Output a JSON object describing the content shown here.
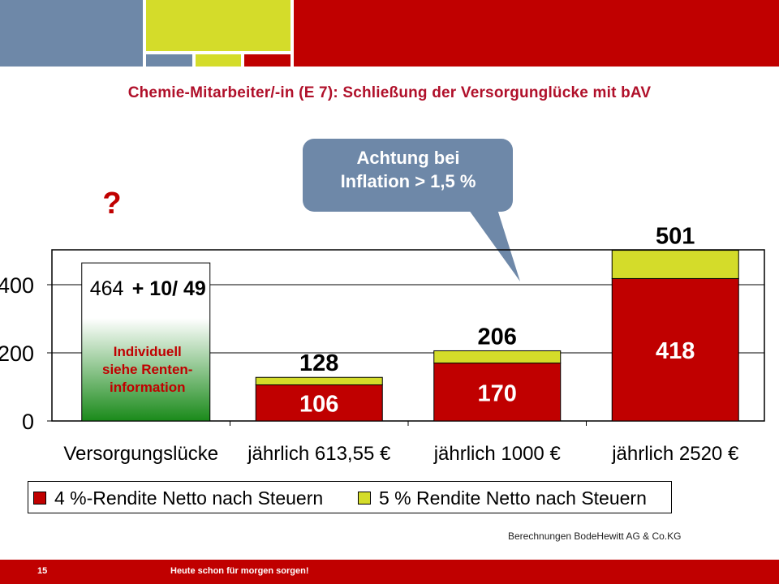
{
  "page": {
    "title": "Chemie-Mitarbeiter/-in (E 7): Schließung der Versorgunglücke mit bAV",
    "callout": [
      "Achtung bei",
      "Inflation > 1,5 %"
    ],
    "question_mark": "?",
    "source_note": "Berechnungen  BodeHewitt AG & Co.KG",
    "footer": {
      "page_number": "15",
      "slogan": "Heute schon für morgen sorgen!"
    }
  },
  "colors": {
    "brand_red": "#c00000",
    "accent_yellow": "#d4dc2a",
    "slate_blue": "#6e88a8",
    "title_red": "#b0102a",
    "gap_green_top": "#ffffff",
    "gap_green_bottom": "#1a8a1a"
  },
  "chart_data": {
    "type": "bar",
    "stacked": true,
    "categories": [
      "Versorgungslücke",
      "jährlich 613,55 €",
      "jährlich 1000 €",
      "jährlich 2520 €"
    ],
    "series": [
      {
        "name": "4 %-Rendite Netto nach Steuern",
        "values": [
          null,
          106,
          170,
          418
        ]
      },
      {
        "name": "5 % Rendite Netto nach Steuern",
        "values": [
          null,
          22,
          36,
          83
        ]
      }
    ],
    "totals": [
      null,
      128,
      206,
      501
    ],
    "gap_bar": {
      "value": 464,
      "label": "464",
      "addition": "+ 10/ 49",
      "note": [
        "Individuell",
        "siehe Renten-",
        "information"
      ]
    },
    "y_ticks": [
      0,
      200,
      400
    ],
    "ylim": [
      0,
      500
    ],
    "xlabel": "",
    "ylabel": "",
    "legend_position": "bottom",
    "grid": true
  }
}
